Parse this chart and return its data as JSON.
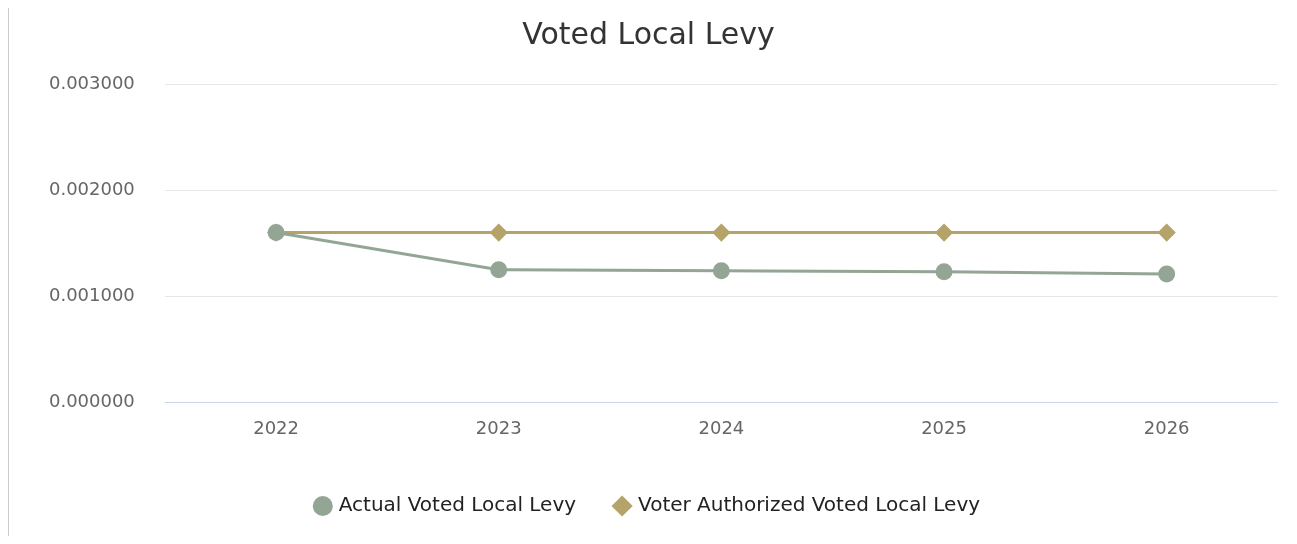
{
  "chart_data": {
    "type": "line",
    "title": "Voted Local Levy",
    "categories": [
      "2022",
      "2023",
      "2024",
      "2025",
      "2026"
    ],
    "series": [
      {
        "name": "Actual Voted Local Levy",
        "color": "#93a595",
        "marker": "circle",
        "values": [
          0.0016,
          0.00125,
          0.00124,
          0.00123,
          0.00121
        ]
      },
      {
        "name": "Voter Authorized Voted Local Levy",
        "color": "#b5a36a",
        "marker": "diamond",
        "values": [
          0.0016,
          0.0016,
          0.0016,
          0.0016,
          0.0016
        ]
      }
    ],
    "ylim": [
      0,
      0.003
    ],
    "yticks": [
      {
        "value": 0,
        "label": "0.000000"
      },
      {
        "value": 0.001,
        "label": "0.001000"
      },
      {
        "value": 0.002,
        "label": "0.002000"
      },
      {
        "value": 0.003,
        "label": "0.003000"
      }
    ],
    "grid": "y",
    "legend": "bottom"
  }
}
